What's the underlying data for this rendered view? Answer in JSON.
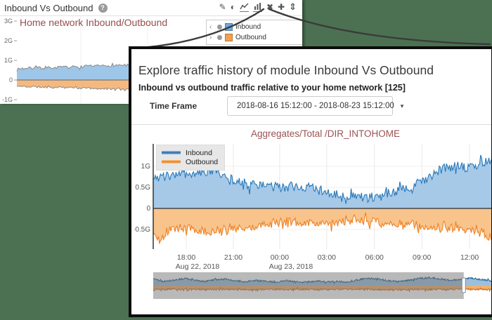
{
  "page": {
    "background": "#4b7152"
  },
  "widget": {
    "title": "Inbound Vs Outbound",
    "help_glyph": "?",
    "toolbar": [
      {
        "name": "edit",
        "glyph": "✎"
      },
      {
        "name": "contrast",
        "glyph": "◐"
      },
      {
        "name": "line-chart"
      },
      {
        "name": "bar-chart"
      },
      {
        "name": "close",
        "glyph": "✖"
      },
      {
        "name": "add",
        "glyph": "✚"
      },
      {
        "name": "resize",
        "glyph": "⇕"
      }
    ]
  },
  "modal": {
    "title": "Explore traffic history of module Inbound Vs Outbound",
    "subtitle": "Inbound vs outbound traffic relative to your home network [125]",
    "time_frame": {
      "label": "Time Frame",
      "value": "2018-08-16 15:12:00 - 2018-08-23 15:12:00",
      "caret": "▾"
    }
  },
  "chart_data": [
    {
      "id": "widget_overview",
      "type": "area",
      "title": "Home network Inbound/Outbound",
      "ylim": [
        -1.2,
        3.3
      ],
      "yticks": [
        {
          "v": 3,
          "label": "3G"
        },
        {
          "v": 2,
          "label": "2G"
        },
        {
          "v": 1,
          "label": "1G"
        },
        {
          "v": 0,
          "label": "0"
        },
        {
          "v": -1,
          "label": "-1G"
        }
      ],
      "series": [
        {
          "name": "Inbound",
          "fill": "#9ec6e8",
          "stroke": "#8a8a8a",
          "swatch": "#6fa8dc",
          "noise": 0.07,
          "points": 210,
          "seed": 7,
          "anchors": [
            [
              0,
              0.58
            ],
            [
              0.1,
              0.62
            ],
            [
              0.2,
              0.66
            ],
            [
              0.3,
              0.72
            ],
            [
              0.4,
              0.78
            ],
            [
              0.5,
              0.84
            ],
            [
              0.6,
              0.9
            ],
            [
              0.7,
              0.92
            ],
            [
              0.78,
              0.86
            ],
            [
              0.85,
              0.92
            ],
            [
              0.93,
              0.96
            ],
            [
              1,
              0.9
            ]
          ]
        },
        {
          "name": "Outbound",
          "fill": "#f5b97f",
          "stroke": "#8a8a8a",
          "swatch": "#f0a050",
          "noise": 0.05,
          "points": 210,
          "seed": 11,
          "anchors": [
            [
              0,
              -0.32
            ],
            [
              0.1,
              -0.36
            ],
            [
              0.2,
              -0.4
            ],
            [
              0.3,
              -0.44
            ],
            [
              0.4,
              -0.46
            ],
            [
              0.5,
              -0.52
            ],
            [
              0.6,
              -0.56
            ],
            [
              0.7,
              -0.5
            ],
            [
              0.8,
              -0.55
            ],
            [
              0.9,
              -0.5
            ],
            [
              1,
              -0.44
            ]
          ]
        }
      ]
    },
    {
      "id": "traffic_history",
      "type": "area",
      "title": "Aggregates/Total /DIR_INTOHOME",
      "ylim": [
        -0.97,
        1.53
      ],
      "yticks": [
        {
          "v": 1,
          "label": "1G"
        },
        {
          "v": 0.5,
          "label": "0.5G"
        },
        {
          "v": 0,
          "label": "0"
        },
        {
          "v": -0.5,
          "label": "-0.5G"
        }
      ],
      "xticks": [
        {
          "pos": 0.097,
          "label": "18:00",
          "date": "Aug 22, 2018"
        },
        {
          "pos": 0.235,
          "label": "21:00"
        },
        {
          "pos": 0.371,
          "label": "00:00",
          "date": "Aug 23, 2018"
        },
        {
          "pos": 0.509,
          "label": "03:00"
        },
        {
          "pos": 0.649,
          "label": "06:00"
        },
        {
          "pos": 0.788,
          "label": "09:00"
        },
        {
          "pos": 0.928,
          "label": "12:00"
        }
      ],
      "series": [
        {
          "name": "Inbound",
          "fill": "#a7c9e8",
          "stroke": "#2878b8",
          "noise": 0.12,
          "points": 330,
          "seed": 3,
          "anchors": [
            [
              0,
              0.82
            ],
            [
              0.02,
              0.72
            ],
            [
              0.04,
              0.8
            ],
            [
              0.07,
              0.78
            ],
            [
              0.1,
              0.84
            ],
            [
              0.13,
              0.78
            ],
            [
              0.16,
              0.9
            ],
            [
              0.18,
              0.94
            ],
            [
              0.2,
              0.82
            ],
            [
              0.23,
              0.7
            ],
            [
              0.26,
              0.6
            ],
            [
              0.3,
              0.56
            ],
            [
              0.34,
              0.52
            ],
            [
              0.38,
              0.5
            ],
            [
              0.42,
              0.53
            ],
            [
              0.46,
              0.48
            ],
            [
              0.5,
              0.42
            ],
            [
              0.54,
              0.36
            ],
            [
              0.58,
              0.3
            ],
            [
              0.62,
              0.27
            ],
            [
              0.65,
              0.25
            ],
            [
              0.68,
              0.32
            ],
            [
              0.71,
              0.4
            ],
            [
              0.74,
              0.47
            ],
            [
              0.77,
              0.56
            ],
            [
              0.8,
              0.72
            ],
            [
              0.83,
              0.86
            ],
            [
              0.86,
              0.96
            ],
            [
              0.89,
              1.02
            ],
            [
              0.92,
              0.98
            ],
            [
              0.95,
              1.06
            ],
            [
              0.98,
              1.1
            ],
            [
              1,
              1.12
            ]
          ]
        },
        {
          "name": "Outbound",
          "fill": "#f8c48c",
          "stroke": "#ef8023",
          "noise": 0.1,
          "points": 330,
          "seed": 5,
          "anchors": [
            [
              0,
              -0.62
            ],
            [
              0.02,
              -0.74
            ],
            [
              0.04,
              -0.55
            ],
            [
              0.08,
              -0.44
            ],
            [
              0.12,
              -0.5
            ],
            [
              0.16,
              -0.56
            ],
            [
              0.2,
              -0.5
            ],
            [
              0.24,
              -0.46
            ],
            [
              0.28,
              -0.44
            ],
            [
              0.32,
              -0.4
            ],
            [
              0.36,
              -0.34
            ],
            [
              0.4,
              -0.3
            ],
            [
              0.44,
              -0.36
            ],
            [
              0.48,
              -0.32
            ],
            [
              0.52,
              -0.36
            ],
            [
              0.56,
              -0.31
            ],
            [
              0.6,
              -0.27
            ],
            [
              0.64,
              -0.3
            ],
            [
              0.68,
              -0.38
            ],
            [
              0.72,
              -0.42
            ],
            [
              0.76,
              -0.37
            ],
            [
              0.8,
              -0.44
            ],
            [
              0.84,
              -0.5
            ],
            [
              0.88,
              -0.46
            ],
            [
              0.92,
              -0.52
            ],
            [
              0.96,
              -0.58
            ],
            [
              1,
              -0.72
            ]
          ]
        }
      ]
    },
    {
      "id": "range_navigator",
      "type": "area",
      "selection_start": 0.909,
      "series": [
        {
          "name": "Inbound",
          "fill": "#9cc0dc",
          "stroke": "#1d5d8f",
          "noise": 0.07,
          "points": 600,
          "seed": 9,
          "anchors": [
            [
              0,
              0.55
            ],
            [
              0.03,
              0.35
            ],
            [
              0.06,
              0.45
            ],
            [
              0.09,
              0.6
            ],
            [
              0.12,
              0.45
            ],
            [
              0.15,
              0.35
            ],
            [
              0.18,
              0.5
            ],
            [
              0.21,
              0.55
            ],
            [
              0.24,
              0.4
            ],
            [
              0.27,
              0.32
            ],
            [
              0.3,
              0.45
            ],
            [
              0.33,
              0.35
            ],
            [
              0.36,
              0.3
            ],
            [
              0.39,
              0.42
            ],
            [
              0.42,
              0.32
            ],
            [
              0.45,
              0.3
            ],
            [
              0.48,
              0.38
            ],
            [
              0.51,
              0.32
            ],
            [
              0.54,
              0.35
            ],
            [
              0.57,
              0.3
            ],
            [
              0.6,
              0.5
            ],
            [
              0.63,
              0.62
            ],
            [
              0.66,
              0.55
            ],
            [
              0.69,
              0.4
            ],
            [
              0.72,
              0.35
            ],
            [
              0.75,
              0.45
            ],
            [
              0.78,
              0.62
            ],
            [
              0.81,
              0.65
            ],
            [
              0.84,
              0.55
            ],
            [
              0.87,
              0.45
            ],
            [
              0.9,
              0.5
            ],
            [
              0.93,
              0.65
            ],
            [
              0.96,
              0.5
            ],
            [
              1,
              0.38
            ]
          ]
        },
        {
          "name": "Outbound",
          "fill": "#f0b070",
          "stroke": "#cb6d1d",
          "noise": 0.07,
          "points": 600,
          "seed": 13,
          "anchors": [
            [
              0,
              -0.3
            ],
            [
              0.1,
              -0.32
            ],
            [
              0.2,
              -0.3
            ],
            [
              0.3,
              -0.34
            ],
            [
              0.4,
              -0.3
            ],
            [
              0.5,
              -0.32
            ],
            [
              0.6,
              -0.3
            ],
            [
              0.7,
              -0.34
            ],
            [
              0.8,
              -0.32
            ],
            [
              0.9,
              -0.3
            ],
            [
              1,
              -0.33
            ]
          ]
        }
      ]
    }
  ]
}
